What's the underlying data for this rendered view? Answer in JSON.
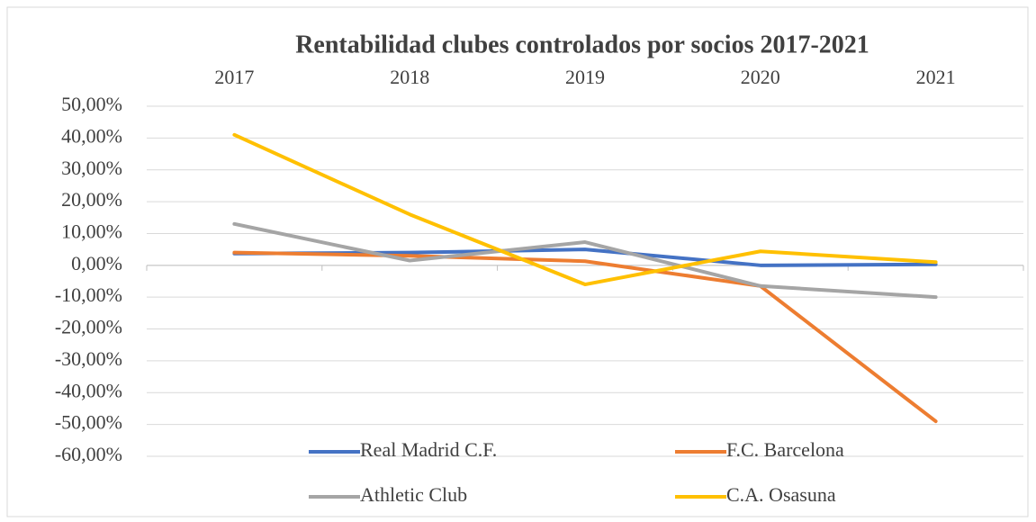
{
  "chart_data": {
    "type": "line",
    "title": "Rentabilidad clubes controlados por socios 2017-2021",
    "categories": [
      "2017",
      "2018",
      "2019",
      "2020",
      "2021"
    ],
    "series": [
      {
        "name": "Real Madrid C.F.",
        "color": "#4472c4",
        "values": [
          3.7,
          4,
          5,
          0,
          0.3
        ]
      },
      {
        "name": "F.C. Barcelona",
        "color": "#ed7d31",
        "values": [
          4,
          3,
          1.3,
          -6.5,
          -49
        ]
      },
      {
        "name": "Athletic Club",
        "color": "#a5a5a5",
        "values": [
          13,
          1.5,
          7.3,
          -6.5,
          -10
        ]
      },
      {
        "name": "C.A. Osasuna",
        "color": "#ffc000",
        "values": [
          41,
          16,
          -6,
          4.4,
          1
        ]
      }
    ],
    "ylim": [
      -60,
      50
    ],
    "yticks": [
      {
        "value": 50,
        "label": "50,00%"
      },
      {
        "value": 40,
        "label": "40,00%"
      },
      {
        "value": 30,
        "label": "30,00%"
      },
      {
        "value": 20,
        "label": "20,00%"
      },
      {
        "value": 10,
        "label": "10,00%"
      },
      {
        "value": 0,
        "label": "0,00%"
      },
      {
        "value": -10,
        "label": "-10,00%"
      },
      {
        "value": -20,
        "label": "-20,00%"
      },
      {
        "value": -30,
        "label": "-30,00%"
      },
      {
        "value": -40,
        "label": "-40,00%"
      },
      {
        "value": -50,
        "label": "-50,00%"
      },
      {
        "value": -60,
        "label": "-60,00%"
      }
    ],
    "grid": true,
    "legend": "bottom"
  }
}
